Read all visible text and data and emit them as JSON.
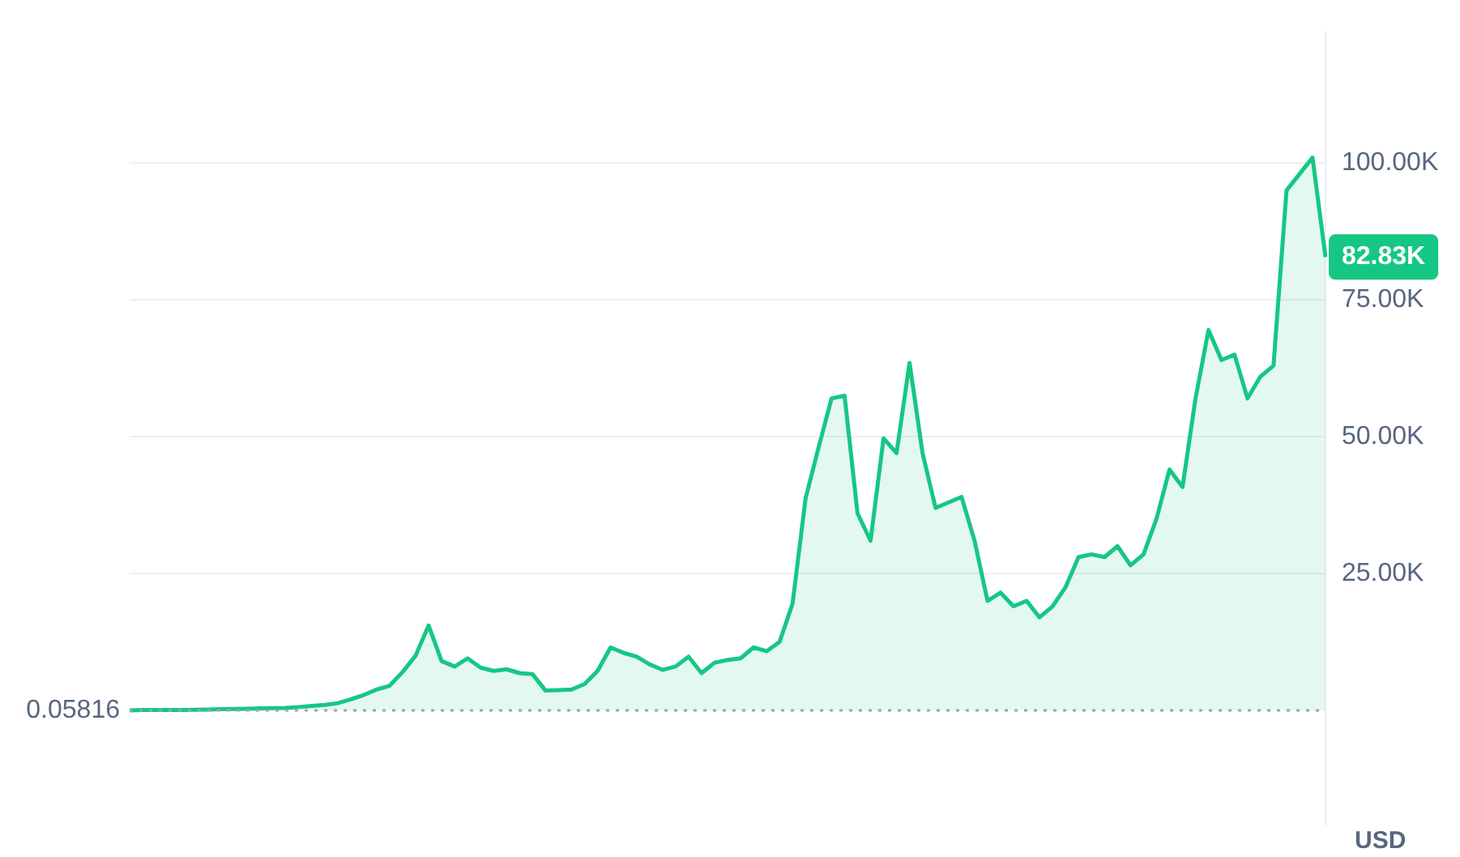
{
  "chart_data": {
    "type": "area",
    "categories": [
      null,
      null,
      null,
      null,
      null,
      null,
      null,
      null,
      null,
      null,
      null,
      null,
      null,
      null,
      null,
      null,
      null,
      null,
      null,
      null,
      null,
      null,
      null,
      null,
      null,
      null,
      null,
      null,
      null,
      null,
      null,
      null,
      null,
      null,
      null,
      null,
      null,
      null,
      null,
      null,
      null,
      null,
      null,
      null,
      null,
      null,
      null,
      null,
      null,
      null,
      null,
      null,
      null,
      null,
      null,
      null,
      null,
      null,
      null,
      null,
      null,
      null,
      null,
      null,
      null,
      null,
      null,
      null,
      null,
      null,
      null,
      null,
      null,
      null,
      null,
      null,
      null,
      null,
      null,
      null,
      null,
      null,
      null,
      null,
      null,
      null,
      null,
      null,
      null,
      null,
      null,
      null,
      null
    ],
    "series": [
      {
        "color": "#16c784",
        "values": [
          0.05816,
          50,
          60,
          70,
          80,
          100,
          120,
          200,
          250,
          300,
          350,
          400,
          450,
          600,
          800,
          1000,
          1300,
          2000,
          2800,
          3800,
          4500,
          7000,
          10000,
          15500,
          9000,
          8000,
          9500,
          7800,
          7200,
          7500,
          6800,
          6600,
          3600,
          3700,
          3800,
          4800,
          7200,
          11500,
          10500,
          9800,
          8400,
          7400,
          8000,
          9800,
          6800,
          8700,
          9200,
          9500,
          11500,
          10800,
          12500,
          19500,
          38700,
          48000,
          57000,
          57500,
          36000,
          31000,
          49700,
          47000,
          63500,
          47000,
          37000,
          38000,
          39000,
          31000,
          20000,
          21500,
          19000,
          20000,
          17000,
          19000,
          22500,
          28000,
          28500,
          28000,
          30000,
          26500,
          28500,
          35000,
          44000,
          40800,
          57000,
          69500,
          64000,
          65000,
          57000,
          61000,
          63000,
          95000,
          98000,
          101000,
          82830
        ]
      }
    ],
    "ylim": [
      -21000,
      124000
    ],
    "yticks": [
      {
        "value": 25000,
        "label": "25.00K"
      },
      {
        "value": 50000,
        "label": "50.00K"
      },
      {
        "value": 75000,
        "label": "75.00K"
      },
      {
        "value": 100000,
        "label": "100.00K"
      }
    ],
    "ylabel": "USD",
    "grid": "y",
    "legend": false,
    "marker": "none",
    "line_style": "solid",
    "tick_labels": "y",
    "ref_lines": [
      {
        "axis": "y",
        "value": 0.05816,
        "label": "0.05816",
        "color": "#a0a4ab",
        "line_style": "dotted"
      }
    ],
    "annotations": [
      "82.83K"
    ]
  }
}
